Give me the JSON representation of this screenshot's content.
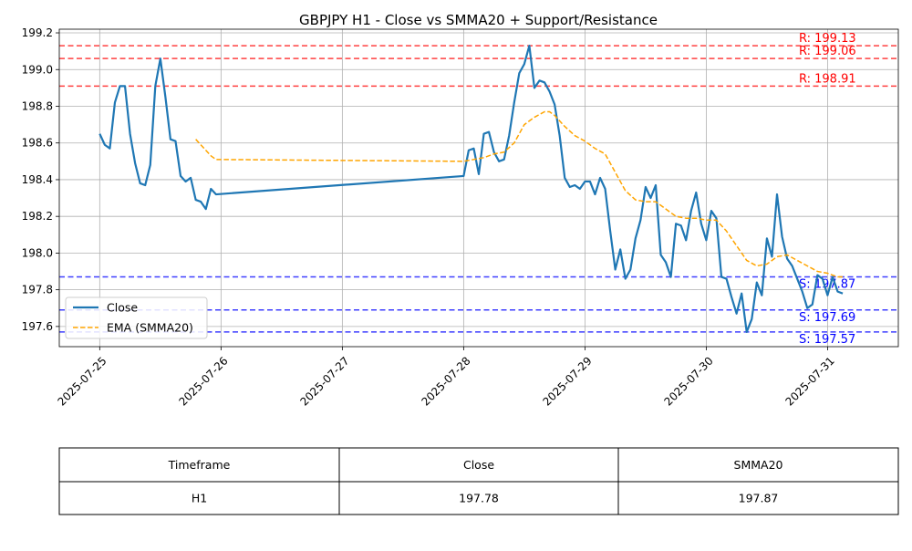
{
  "chart_data": {
    "type": "line",
    "title": "GBPJPY H1 - Close vs SMMA20 + Support/Resistance",
    "xlabel": "",
    "ylabel": "",
    "ylim": [
      197.49,
      199.22
    ],
    "xlim": [
      "2025-07-24T16:00",
      "2025-07-31T14:00"
    ],
    "grid": true,
    "legend_position": "center-left",
    "x_tick_labels": [
      "2025-07-25",
      "2025-07-26",
      "2025-07-27",
      "2025-07-28",
      "2025-07-29",
      "2025-07-30",
      "2025-07-31"
    ],
    "y_tick_labels": [
      "197.6",
      "197.8",
      "198.0",
      "198.2",
      "198.4",
      "198.6",
      "198.8",
      "199.0",
      "199.2"
    ],
    "series": [
      {
        "name": "Close",
        "color": "#1f77b4",
        "style": "solid",
        "points": [
          [
            "2025-07-25T00:00",
            198.65
          ],
          [
            "2025-07-25T01:00",
            198.59
          ],
          [
            "2025-07-25T02:00",
            198.57
          ],
          [
            "2025-07-25T03:00",
            198.82
          ],
          [
            "2025-07-25T04:00",
            198.91
          ],
          [
            "2025-07-25T05:00",
            198.91
          ],
          [
            "2025-07-25T06:00",
            198.65
          ],
          [
            "2025-07-25T07:00",
            198.49
          ],
          [
            "2025-07-25T08:00",
            198.38
          ],
          [
            "2025-07-25T09:00",
            198.37
          ],
          [
            "2025-07-25T10:00",
            198.48
          ],
          [
            "2025-07-25T11:00",
            198.91
          ],
          [
            "2025-07-25T12:00",
            199.06
          ],
          [
            "2025-07-25T13:00",
            198.85
          ],
          [
            "2025-07-25T14:00",
            198.62
          ],
          [
            "2025-07-25T15:00",
            198.61
          ],
          [
            "2025-07-25T16:00",
            198.42
          ],
          [
            "2025-07-25T17:00",
            198.39
          ],
          [
            "2025-07-25T18:00",
            198.41
          ],
          [
            "2025-07-25T19:00",
            198.29
          ],
          [
            "2025-07-25T20:00",
            198.28
          ],
          [
            "2025-07-25T21:00",
            198.24
          ],
          [
            "2025-07-25T22:00",
            198.35
          ],
          [
            "2025-07-25T23:00",
            198.32
          ],
          [
            "2025-07-28T00:00",
            198.42
          ],
          [
            "2025-07-28T01:00",
            198.56
          ],
          [
            "2025-07-28T02:00",
            198.57
          ],
          [
            "2025-07-28T03:00",
            198.43
          ],
          [
            "2025-07-28T04:00",
            198.65
          ],
          [
            "2025-07-28T05:00",
            198.66
          ],
          [
            "2025-07-28T06:00",
            198.55
          ],
          [
            "2025-07-28T07:00",
            198.5
          ],
          [
            "2025-07-28T08:00",
            198.51
          ],
          [
            "2025-07-28T09:00",
            198.64
          ],
          [
            "2025-07-28T10:00",
            198.82
          ],
          [
            "2025-07-28T11:00",
            198.98
          ],
          [
            "2025-07-28T12:00",
            199.03
          ],
          [
            "2025-07-28T13:00",
            199.13
          ],
          [
            "2025-07-28T14:00",
            198.9
          ],
          [
            "2025-07-28T15:00",
            198.94
          ],
          [
            "2025-07-28T16:00",
            198.93
          ],
          [
            "2025-07-28T17:00",
            198.88
          ],
          [
            "2025-07-28T18:00",
            198.81
          ],
          [
            "2025-07-28T19:00",
            198.64
          ],
          [
            "2025-07-28T20:00",
            198.41
          ],
          [
            "2025-07-28T21:00",
            198.36
          ],
          [
            "2025-07-28T22:00",
            198.37
          ],
          [
            "2025-07-28T23:00",
            198.35
          ],
          [
            "2025-07-29T00:00",
            198.39
          ],
          [
            "2025-07-29T01:00",
            198.39
          ],
          [
            "2025-07-29T02:00",
            198.32
          ],
          [
            "2025-07-29T03:00",
            198.41
          ],
          [
            "2025-07-29T04:00",
            198.35
          ],
          [
            "2025-07-29T05:00",
            198.12
          ],
          [
            "2025-07-29T06:00",
            197.91
          ],
          [
            "2025-07-29T07:00",
            198.02
          ],
          [
            "2025-07-29T08:00",
            197.86
          ],
          [
            "2025-07-29T09:00",
            197.91
          ],
          [
            "2025-07-29T10:00",
            198.08
          ],
          [
            "2025-07-29T11:00",
            198.18
          ],
          [
            "2025-07-29T12:00",
            198.36
          ],
          [
            "2025-07-29T13:00",
            198.3
          ],
          [
            "2025-07-29T14:00",
            198.37
          ],
          [
            "2025-07-29T15:00",
            197.99
          ],
          [
            "2025-07-29T16:00",
            197.95
          ],
          [
            "2025-07-29T17:00",
            197.87
          ],
          [
            "2025-07-29T18:00",
            198.16
          ],
          [
            "2025-07-29T19:00",
            198.15
          ],
          [
            "2025-07-29T20:00",
            198.07
          ],
          [
            "2025-07-29T21:00",
            198.23
          ],
          [
            "2025-07-29T22:00",
            198.33
          ],
          [
            "2025-07-29T23:00",
            198.16
          ],
          [
            "2025-07-30T00:00",
            198.07
          ],
          [
            "2025-07-30T01:00",
            198.23
          ],
          [
            "2025-07-30T02:00",
            198.19
          ],
          [
            "2025-07-30T03:00",
            197.87
          ],
          [
            "2025-07-30T04:00",
            197.86
          ],
          [
            "2025-07-30T05:00",
            197.76
          ],
          [
            "2025-07-30T06:00",
            197.67
          ],
          [
            "2025-07-30T07:00",
            197.78
          ],
          [
            "2025-07-30T08:00",
            197.57
          ],
          [
            "2025-07-30T09:00",
            197.64
          ],
          [
            "2025-07-30T10:00",
            197.84
          ],
          [
            "2025-07-30T11:00",
            197.77
          ],
          [
            "2025-07-30T12:00",
            198.08
          ],
          [
            "2025-07-30T13:00",
            197.98
          ],
          [
            "2025-07-30T14:00",
            198.32
          ],
          [
            "2025-07-30T15:00",
            198.09
          ],
          [
            "2025-07-30T16:00",
            197.97
          ],
          [
            "2025-07-30T17:00",
            197.93
          ],
          [
            "2025-07-30T18:00",
            197.86
          ],
          [
            "2025-07-30T19:00",
            197.79
          ],
          [
            "2025-07-30T20:00",
            197.7
          ],
          [
            "2025-07-30T21:00",
            197.72
          ],
          [
            "2025-07-30T22:00",
            197.88
          ],
          [
            "2025-07-30T23:00",
            197.86
          ],
          [
            "2025-07-31T00:00",
            197.77
          ],
          [
            "2025-07-31T01:00",
            197.87
          ],
          [
            "2025-07-31T02:00",
            197.79
          ],
          [
            "2025-07-31T03:00",
            197.78
          ]
        ]
      },
      {
        "name": "EMA (SMMA20)",
        "color": "#ffa500",
        "style": "dashed",
        "points": [
          [
            "2025-07-25T19:00",
            198.62
          ],
          [
            "2025-07-25T20:00",
            198.59
          ],
          [
            "2025-07-25T21:00",
            198.56
          ],
          [
            "2025-07-25T22:00",
            198.53
          ],
          [
            "2025-07-25T23:00",
            198.51
          ],
          [
            "2025-07-28T00:00",
            198.5
          ],
          [
            "2025-07-28T02:00",
            198.51
          ],
          [
            "2025-07-28T04:00",
            198.52
          ],
          [
            "2025-07-28T06:00",
            198.54
          ],
          [
            "2025-07-28T08:00",
            198.55
          ],
          [
            "2025-07-28T10:00",
            198.6
          ],
          [
            "2025-07-28T12:00",
            198.7
          ],
          [
            "2025-07-28T14:00",
            198.74
          ],
          [
            "2025-07-28T16:00",
            198.77
          ],
          [
            "2025-07-28T17:00",
            198.77
          ],
          [
            "2025-07-28T18:00",
            198.75
          ],
          [
            "2025-07-28T20:00",
            198.69
          ],
          [
            "2025-07-28T22:00",
            198.64
          ],
          [
            "2025-07-29T00:00",
            198.61
          ],
          [
            "2025-07-29T02:00",
            198.57
          ],
          [
            "2025-07-29T04:00",
            198.54
          ],
          [
            "2025-07-29T06:00",
            198.44
          ],
          [
            "2025-07-29T08:00",
            198.34
          ],
          [
            "2025-07-29T10:00",
            198.29
          ],
          [
            "2025-07-29T12:00",
            198.28
          ],
          [
            "2025-07-29T14:00",
            198.28
          ],
          [
            "2025-07-29T16:00",
            198.24
          ],
          [
            "2025-07-29T18:00",
            198.2
          ],
          [
            "2025-07-29T20:00",
            198.19
          ],
          [
            "2025-07-29T22:00",
            198.19
          ],
          [
            "2025-07-30T00:00",
            198.18
          ],
          [
            "2025-07-30T02:00",
            198.18
          ],
          [
            "2025-07-30T04:00",
            198.12
          ],
          [
            "2025-07-30T06:00",
            198.04
          ],
          [
            "2025-07-30T08:00",
            197.96
          ],
          [
            "2025-07-30T10:00",
            197.93
          ],
          [
            "2025-07-30T12:00",
            197.94
          ],
          [
            "2025-07-30T14:00",
            197.98
          ],
          [
            "2025-07-30T16:00",
            197.99
          ],
          [
            "2025-07-30T18:00",
            197.96
          ],
          [
            "2025-07-30T20:00",
            197.93
          ],
          [
            "2025-07-30T22:00",
            197.9
          ],
          [
            "2025-07-31T00:00",
            197.89
          ],
          [
            "2025-07-31T02:00",
            197.87
          ],
          [
            "2025-07-31T03:00",
            197.87
          ]
        ]
      }
    ],
    "resistance_levels": [
      {
        "value": 199.13,
        "label": "R: 199.13",
        "color": "#ff0000"
      },
      {
        "value": 199.06,
        "label": "R: 199.06",
        "color": "#ff0000"
      },
      {
        "value": 198.91,
        "label": "R: 198.91",
        "color": "#ff0000"
      }
    ],
    "support_levels": [
      {
        "value": 197.87,
        "label": "S: 197.87",
        "color": "#0000ff"
      },
      {
        "value": 197.69,
        "label": "S: 197.69",
        "color": "#0000ff"
      },
      {
        "value": 197.57,
        "label": "S: 197.57",
        "color": "#0000ff"
      }
    ]
  },
  "summary_table": {
    "headers": [
      "Timeframe",
      "Close",
      "SMMA20"
    ],
    "rows": [
      [
        "H1",
        "197.78",
        "197.87"
      ]
    ]
  }
}
